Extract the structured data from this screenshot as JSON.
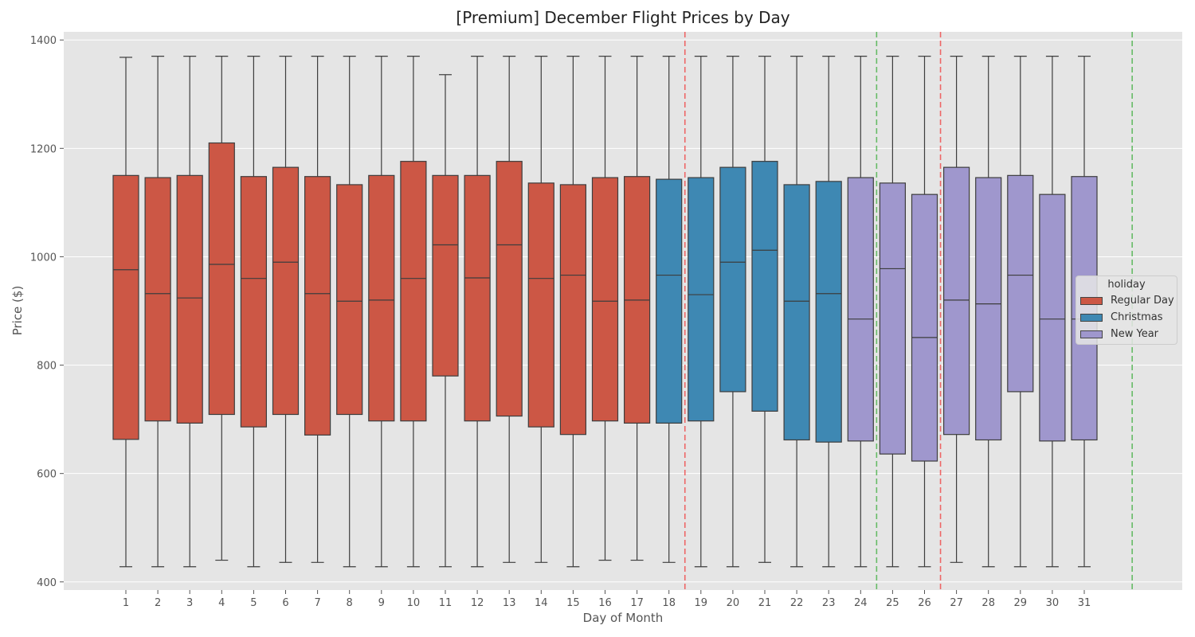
{
  "chart_data": {
    "type": "box",
    "title": "[Premium] December Flight Prices by Day",
    "xlabel": "Day of Month",
    "ylabel": "Price ($)",
    "ylim": [
      385,
      1415
    ],
    "yticks": [
      400,
      600,
      800,
      1000,
      1200,
      1400
    ],
    "grid": true,
    "legend": {
      "title": "holiday",
      "placement": "center-right",
      "entries": [
        {
          "label": "Regular Day",
          "color": "#cc5745"
        },
        {
          "label": "Christmas",
          "color": "#3e88b3"
        },
        {
          "label": "New Year",
          "color": "#9f97cd"
        }
      ]
    },
    "categories": [
      "1",
      "2",
      "3",
      "4",
      "5",
      "6",
      "7",
      "8",
      "9",
      "10",
      "11",
      "12",
      "13",
      "14",
      "15",
      "16",
      "17",
      "18",
      "19",
      "20",
      "21",
      "22",
      "23",
      "24",
      "25",
      "26",
      "27",
      "28",
      "29",
      "30",
      "31"
    ],
    "boxes": [
      {
        "day": "1",
        "group": "Regular Day",
        "whislo": 428,
        "q1": 663,
        "med": 976,
        "q3": 1150,
        "whishi": 1368
      },
      {
        "day": "2",
        "group": "Regular Day",
        "whislo": 428,
        "q1": 697,
        "med": 932,
        "q3": 1146,
        "whishi": 1370
      },
      {
        "day": "3",
        "group": "Regular Day",
        "whislo": 428,
        "q1": 693,
        "med": 924,
        "q3": 1150,
        "whishi": 1370
      },
      {
        "day": "4",
        "group": "Regular Day",
        "whislo": 440,
        "q1": 709,
        "med": 986,
        "q3": 1210,
        "whishi": 1370
      },
      {
        "day": "5",
        "group": "Regular Day",
        "whislo": 428,
        "q1": 686,
        "med": 960,
        "q3": 1148,
        "whishi": 1370
      },
      {
        "day": "6",
        "group": "Regular Day",
        "whislo": 436,
        "q1": 709,
        "med": 990,
        "q3": 1165,
        "whishi": 1370
      },
      {
        "day": "7",
        "group": "Regular Day",
        "whislo": 436,
        "q1": 671,
        "med": 932,
        "q3": 1148,
        "whishi": 1370
      },
      {
        "day": "8",
        "group": "Regular Day",
        "whislo": 428,
        "q1": 709,
        "med": 918,
        "q3": 1133,
        "whishi": 1370
      },
      {
        "day": "9",
        "group": "Regular Day",
        "whislo": 428,
        "q1": 697,
        "med": 920,
        "q3": 1150,
        "whishi": 1370
      },
      {
        "day": "10",
        "group": "Regular Day",
        "whislo": 428,
        "q1": 697,
        "med": 960,
        "q3": 1176,
        "whishi": 1370
      },
      {
        "day": "11",
        "group": "Regular Day",
        "whislo": 428,
        "q1": 780,
        "med": 1022,
        "q3": 1150,
        "whishi": 1336
      },
      {
        "day": "12",
        "group": "Regular Day",
        "whislo": 428,
        "q1": 697,
        "med": 961,
        "q3": 1150,
        "whishi": 1370
      },
      {
        "day": "13",
        "group": "Regular Day",
        "whislo": 436,
        "q1": 706,
        "med": 1022,
        "q3": 1176,
        "whishi": 1370
      },
      {
        "day": "14",
        "group": "Regular Day",
        "whislo": 436,
        "q1": 686,
        "med": 960,
        "q3": 1136,
        "whishi": 1370
      },
      {
        "day": "15",
        "group": "Regular Day",
        "whislo": 428,
        "q1": 672,
        "med": 966,
        "q3": 1133,
        "whishi": 1370
      },
      {
        "day": "16",
        "group": "Regular Day",
        "whislo": 440,
        "q1": 697,
        "med": 918,
        "q3": 1146,
        "whishi": 1370
      },
      {
        "day": "17",
        "group": "Regular Day",
        "whislo": 440,
        "q1": 693,
        "med": 920,
        "q3": 1148,
        "whishi": 1370
      },
      {
        "day": "18",
        "group": "Christmas",
        "whislo": 436,
        "q1": 693,
        "med": 966,
        "q3": 1143,
        "whishi": 1370
      },
      {
        "day": "19",
        "group": "Christmas",
        "whislo": 428,
        "q1": 697,
        "med": 930,
        "q3": 1146,
        "whishi": 1370
      },
      {
        "day": "20",
        "group": "Christmas",
        "whislo": 428,
        "q1": 751,
        "med": 990,
        "q3": 1165,
        "whishi": 1370
      },
      {
        "day": "21",
        "group": "Christmas",
        "whislo": 436,
        "q1": 715,
        "med": 1012,
        "q3": 1176,
        "whishi": 1370
      },
      {
        "day": "22",
        "group": "Christmas",
        "whislo": 428,
        "q1": 662,
        "med": 918,
        "q3": 1133,
        "whishi": 1370
      },
      {
        "day": "23",
        "group": "Christmas",
        "whislo": 428,
        "q1": 658,
        "med": 932,
        "q3": 1139,
        "whishi": 1370
      },
      {
        "day": "24",
        "group": "New Year",
        "whislo": 428,
        "q1": 660,
        "med": 885,
        "q3": 1146,
        "whishi": 1370
      },
      {
        "day": "25",
        "group": "New Year",
        "whislo": 428,
        "q1": 636,
        "med": 978,
        "q3": 1136,
        "whishi": 1370
      },
      {
        "day": "26",
        "group": "New Year",
        "whislo": 428,
        "q1": 623,
        "med": 851,
        "q3": 1115,
        "whishi": 1370
      },
      {
        "day": "27",
        "group": "New Year",
        "whislo": 436,
        "q1": 672,
        "med": 920,
        "q3": 1165,
        "whishi": 1370
      },
      {
        "day": "28",
        "group": "New Year",
        "whislo": 428,
        "q1": 662,
        "med": 913,
        "q3": 1146,
        "whishi": 1370
      },
      {
        "day": "29",
        "group": "New Year",
        "whislo": 428,
        "q1": 751,
        "med": 966,
        "q3": 1150,
        "whishi": 1370
      },
      {
        "day": "30",
        "group": "New Year",
        "whislo": 428,
        "q1": 660,
        "med": 885,
        "q3": 1115,
        "whishi": 1370
      },
      {
        "day": "31",
        "group": "New Year",
        "whislo": 428,
        "q1": 662,
        "med": 885,
        "q3": 1148,
        "whishi": 1370
      }
    ],
    "vlines": [
      {
        "position_day": 18.5,
        "color": "#ee6666",
        "style": "dashed"
      },
      {
        "position_day": 24.5,
        "color": "#66bb66",
        "style": "dashed"
      },
      {
        "position_day": 26.5,
        "color": "#ee6666",
        "style": "dashed"
      },
      {
        "position_day": 32.5,
        "color": "#66bb66",
        "style": "dashed"
      }
    ]
  }
}
